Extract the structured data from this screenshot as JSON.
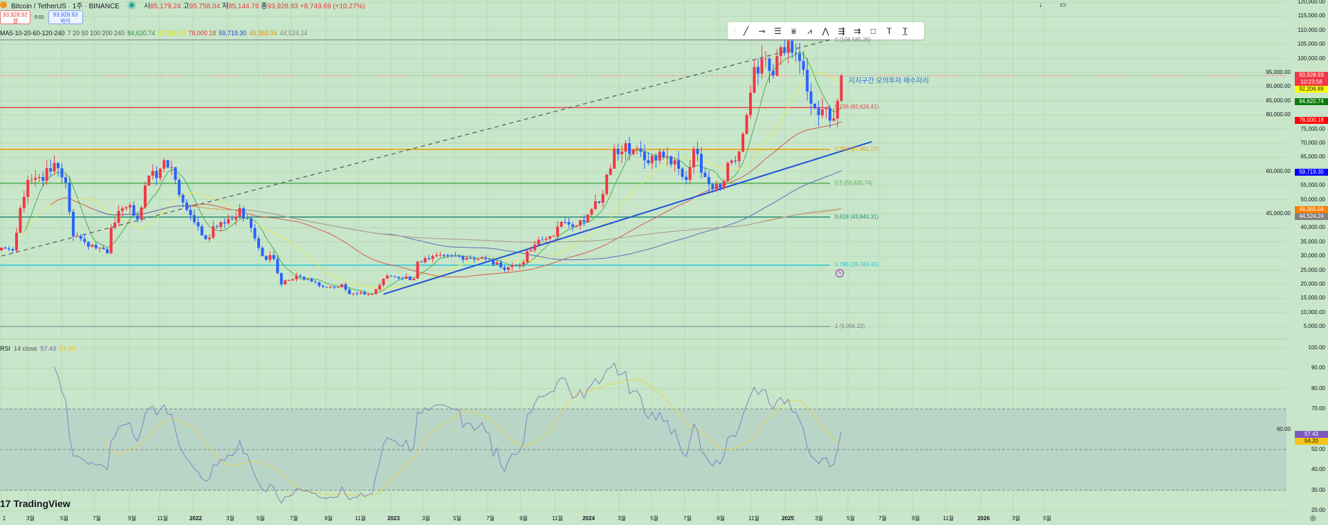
{
  "header": {
    "symbol": "Bitcoin / TetherUS · 1주 · BINANCE",
    "open_label": "시",
    "open": "85,179.24",
    "high_label": "고",
    "high": "95,758.04",
    "low_label": "저",
    "low": "85,144.76",
    "close_label": "종",
    "close": "93,928.93",
    "change": "+8,749.69 (+10.27%)"
  },
  "trade": {
    "sell_price": "93,928.92",
    "sell_label": "셀",
    "spread": "0.01",
    "buy_price": "93,928.93",
    "buy_label": "바이"
  },
  "ma_legend": {
    "name": "MA5-10-20-60-120-240",
    "params": "7 20 50 100 200 240",
    "values": [
      {
        "v": "84,620.74",
        "c": "#2e8b3a"
      },
      {
        "v": "92,206.89",
        "c": "#e6e600"
      },
      {
        "v": "78,000.18",
        "c": "#e53935"
      },
      {
        "v": "59,719.30",
        "c": "#1e3fd8"
      },
      {
        "v": "46,365.04",
        "c": "#f08c00"
      },
      {
        "v": "44,524.24",
        "c": "#888888"
      }
    ]
  },
  "toolbar": [
    "trend-line",
    "horizontal-ray",
    "parallel-channel",
    "fib-retracement",
    "xabcd-pattern",
    "abcd-pattern",
    "long-position",
    "short-position",
    "rectangle",
    "text",
    "anchored-text"
  ],
  "annotation": "지지구간 모의투자 매수자리",
  "fib_levels": [
    {
      "label": "0 (106,585.26)",
      "price": 106585.26,
      "color": "#787b86"
    },
    {
      "label": "0.236 (82,624.41)",
      "price": 82624.41,
      "color": "#e0474c"
    },
    {
      "label": "0.382 (67,801.17)",
      "price": 67801.17,
      "color": "#f29d00"
    },
    {
      "label": "0.5 (55,820.74)",
      "price": 55820.74,
      "color": "#4caf50"
    },
    {
      "label": "0.618 (43,840.31)",
      "price": 43840.31,
      "color": "#218c74"
    },
    {
      "label": "0.786 (26,783.43)",
      "price": 26783.43,
      "color": "#1cc6d6"
    },
    {
      "label": "1 (5,056.22)",
      "price": 5056.22,
      "color": "#787b86"
    }
  ],
  "price_tags": [
    {
      "text": "93,928.93",
      "sub": "10:23:58",
      "price": 93928.93,
      "bg": "#f23645",
      "fg": "#ffffff"
    },
    {
      "text": "92,206.89",
      "price": 92206.89,
      "bg": "#ffff00",
      "fg": "#131722"
    },
    {
      "text": "84,620.74",
      "price": 84620.74,
      "bg": "#0b7a0b",
      "fg": "#ffffff"
    },
    {
      "text": "78,000.18",
      "price": 78000.18,
      "bg": "#ff0000",
      "fg": "#ffffff"
    },
    {
      "text": "59,719.30",
      "price": 59719.3,
      "bg": "#0000ff",
      "fg": "#ffffff"
    },
    {
      "text": "46,365.04",
      "price": 46365.04,
      "bg": "#ff8000",
      "fg": "#ffffff"
    },
    {
      "text": "44,524.24",
      "price": 44524.24,
      "bg": "#808080",
      "fg": "#ffffff"
    }
  ],
  "rsi": {
    "name": "RSI",
    "params": "14 close",
    "value": "57.43",
    "ma_value": "54.20",
    "value_color": "#7e57c2",
    "ma_color": "#f5c518"
  },
  "brand": "TradingView",
  "chart_data": {
    "type": "candlestick",
    "title": "Bitcoin / TetherUS · 1주 · BINANCE",
    "ylim": [
      0,
      120000
    ],
    "y_ticks": [
      "120,000.00",
      "115,000.00",
      "110,000.00",
      "105,000.00",
      "100,000.00",
      "95,000.00",
      "90,000.00",
      "85,000.00",
      "80,000.00",
      "75,000.00",
      "70,000.00",
      "65,000.00",
      "60,000.00",
      "55,000.00",
      "50,000.00",
      "45,000.00",
      "40,000.00",
      "35,000.00",
      "30,000.00",
      "25,000.00",
      "20,000.00",
      "15,000.00",
      "10,000.00",
      "5,000.00"
    ],
    "rsi_ticks": [
      "100.00",
      "90.00",
      "80.00",
      "70.00",
      "60.00",
      "50.00",
      "40.00",
      "30.00",
      "20.00"
    ],
    "x_ticks": [
      "1",
      "3월",
      "5월",
      "7월",
      "9월",
      "11월",
      "2022",
      "3월",
      "5월",
      "7월",
      "9월",
      "11월",
      "2023",
      "3월",
      "5월",
      "7월",
      "9월",
      "11월",
      "2024",
      "3월",
      "5월",
      "7월",
      "9월",
      "11월",
      "2025",
      "3월",
      "5월",
      "7월",
      "9월",
      "11월",
      "2026",
      "3월",
      "5월"
    ],
    "close_keypoints_week_price": [
      [
        0,
        33000
      ],
      [
        3,
        32000
      ],
      [
        5,
        47000
      ],
      [
        7,
        57000
      ],
      [
        10,
        58000
      ],
      [
        13,
        60000
      ],
      [
        14,
        63000
      ],
      [
        17,
        56000
      ],
      [
        19,
        37000
      ],
      [
        22,
        35000
      ],
      [
        26,
        33000
      ],
      [
        28,
        31000
      ],
      [
        29,
        40000
      ],
      [
        31,
        46000
      ],
      [
        34,
        48000
      ],
      [
        36,
        43000
      ],
      [
        38,
        55000
      ],
      [
        42,
        61000
      ],
      [
        43,
        64000
      ],
      [
        46,
        57000
      ],
      [
        48,
        49000
      ],
      [
        51,
        42000
      ],
      [
        54,
        36000
      ],
      [
        58,
        42000
      ],
      [
        62,
        44000
      ],
      [
        63,
        47000
      ],
      [
        66,
        40000
      ],
      [
        69,
        30000
      ],
      [
        72,
        29000
      ],
      [
        74,
        20000
      ],
      [
        78,
        23000
      ],
      [
        82,
        21000
      ],
      [
        86,
        19000
      ],
      [
        90,
        20000
      ],
      [
        92,
        16500
      ],
      [
        98,
        16600
      ],
      [
        102,
        23000
      ],
      [
        109,
        22000
      ],
      [
        110,
        28000
      ],
      [
        113,
        29000
      ],
      [
        121,
        30000
      ],
      [
        128,
        29000
      ],
      [
        132,
        26000
      ],
      [
        137,
        27000
      ],
      [
        141,
        34000
      ],
      [
        145,
        37000
      ],
      [
        149,
        42000
      ],
      [
        154,
        42000
      ],
      [
        159,
        52000
      ],
      [
        162,
        68000
      ],
      [
        165,
        70000
      ],
      [
        170,
        64000
      ],
      [
        174,
        67000
      ],
      [
        178,
        64000
      ],
      [
        181,
        57000
      ],
      [
        183,
        68000
      ],
      [
        186,
        58000
      ],
      [
        190,
        54000
      ],
      [
        192,
        63000
      ],
      [
        195,
        67000
      ],
      [
        197,
        80000
      ],
      [
        199,
        97000
      ],
      [
        201,
        100000
      ],
      [
        204,
        94000
      ],
      [
        206,
        104000
      ],
      [
        209,
        102000
      ],
      [
        212,
        96000
      ],
      [
        214,
        84000
      ],
      [
        217,
        82000
      ],
      [
        219,
        78000
      ],
      [
        221,
        85000
      ],
      [
        222,
        93928.93
      ]
    ],
    "ma_periods": [
      7,
      20,
      50,
      100,
      200,
      240
    ],
    "ma_colors": [
      "#4caf50",
      "#e8ea5a",
      "#d9574a",
      "#5c6bc0",
      "#f0a84a",
      "#a0a0a0"
    ],
    "up_color": "#f23645",
    "down_color": "#2962ff",
    "trendlines": [
      {
        "style": "dashed",
        "from": [
          0,
          30000
        ],
        "to": [
          220,
          107000
        ],
        "color": "#555555"
      },
      {
        "style": "solid",
        "from": [
          101,
          16500
        ],
        "to": [
          230,
          70500
        ],
        "color": "#1e50d8"
      }
    ]
  }
}
